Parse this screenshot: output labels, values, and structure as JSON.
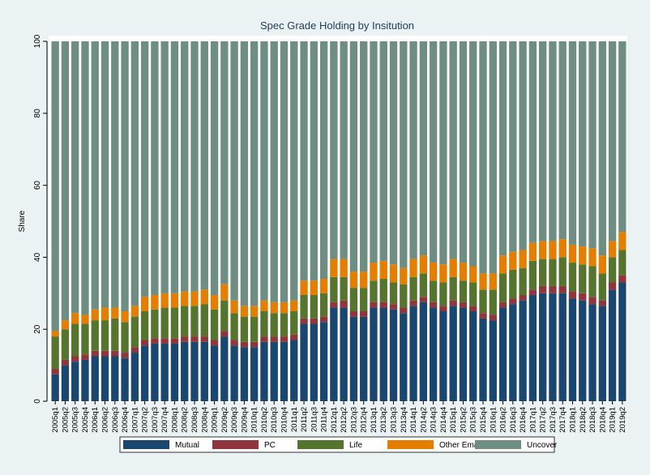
{
  "chart_data": {
    "type": "stacked_bar",
    "title": "Spec Grade  Holding by Insitution",
    "ylabel": "Share",
    "categories": [
      "2005q1",
      "2005q2",
      "2005q3",
      "2005q4",
      "2006q1",
      "2006q2",
      "2006q3",
      "2006q4",
      "2007q1",
      "2007q2",
      "2007q3",
      "2007q4",
      "2008q1",
      "2008q2",
      "2008q3",
      "2008q4",
      "2009q1",
      "2009q2",
      "2009q3",
      "2009q4",
      "2010q1",
      "2010q2",
      "2010q3",
      "2010q4",
      "2011q1",
      "2011q2",
      "2011q3",
      "2011q4",
      "2012q1",
      "2012q2",
      "2012q3",
      "2012q4",
      "2013q1",
      "2013q2",
      "2013q3",
      "2013q4",
      "2014q1",
      "2014q2",
      "2014q3",
      "2014q4",
      "2015q1",
      "2015q2",
      "2015q3",
      "2015q4",
      "2016q1",
      "2016q2",
      "2016q3",
      "2016q4",
      "2017q1",
      "2017q2",
      "2017q3",
      "2017q4",
      "2018q1",
      "2018q2",
      "2018q3",
      "2018q4",
      "2019q1",
      "2019q2"
    ],
    "series": [
      {
        "name": "Mutual",
        "color": "#1a476f",
        "values": [
          7.5,
          10,
          11,
          11.5,
          12.5,
          12.5,
          12.5,
          12,
          13.5,
          15.5,
          16,
          16,
          16,
          16.5,
          16.5,
          16.5,
          15.5,
          18,
          15.5,
          15,
          15,
          16.5,
          16.5,
          16.5,
          17,
          21.5,
          21.5,
          22,
          26,
          26,
          23.5,
          23.5,
          26,
          26,
          25.5,
          24.5,
          26.5,
          27.5,
          26,
          25,
          26.5,
          26,
          25,
          23,
          22.5,
          26,
          27,
          28,
          29.5,
          30,
          30,
          30,
          28.5,
          28,
          27,
          26.5,
          31,
          33
        ]
      },
      {
        "name": "PC",
        "color": "#90353b",
        "values": [
          1.5,
          1.5,
          1.5,
          1.5,
          1.5,
          1.5,
          1.5,
          1.5,
          1.5,
          1.5,
          1.5,
          1.5,
          1.5,
          1.5,
          1.5,
          1.5,
          1.5,
          1.5,
          1.5,
          1.5,
          1.5,
          1.5,
          1.5,
          1.5,
          1.5,
          1.5,
          1.5,
          1.5,
          1.5,
          2,
          1.5,
          1.5,
          1.5,
          1.5,
          1.5,
          1.5,
          1.5,
          1.5,
          1.5,
          1.5,
          1.5,
          1.5,
          1.5,
          1.5,
          1.5,
          1.5,
          1.5,
          1.5,
          1.5,
          2,
          2,
          2,
          2,
          2,
          2,
          1.5,
          2,
          2
        ]
      },
      {
        "name": "Life",
        "color": "#55752f",
        "values": [
          9,
          8.5,
          9,
          8.5,
          8.5,
          8.5,
          9,
          8.5,
          8.5,
          8,
          8,
          8.5,
          8.5,
          8.5,
          8.5,
          9,
          8.5,
          8.5,
          7.5,
          7,
          7,
          7,
          6.5,
          6.5,
          6.5,
          6.5,
          6.5,
          6.5,
          7,
          6.5,
          6.5,
          6.5,
          6,
          6.5,
          6,
          6.5,
          6.5,
          6.5,
          6,
          6.5,
          6.5,
          6,
          6.5,
          6.5,
          7,
          8,
          8,
          7.5,
          8,
          7.5,
          7.5,
          8,
          8,
          8,
          8.5,
          7.5,
          7,
          7
        ]
      },
      {
        "name": "Other Emaxx",
        "color": "#e37e00",
        "values": [
          1.5,
          2.5,
          3,
          2.5,
          3,
          3.5,
          3,
          3,
          3,
          4,
          4,
          4,
          4,
          4,
          4,
          4,
          4,
          4.5,
          3.5,
          3,
          3,
          3,
          3,
          3,
          3,
          4,
          4,
          4,
          5,
          5,
          4.5,
          4.5,
          5,
          5,
          5,
          4.5,
          5,
          5,
          5,
          5,
          5,
          5,
          4.5,
          4.5,
          4.5,
          5,
          5,
          5,
          5,
          5,
          5,
          5,
          5,
          5,
          5,
          5,
          4.5,
          5
        ]
      },
      {
        "name": "Uncover",
        "color": "#6e8e84",
        "values": [
          80.5,
          77.5,
          75.5,
          76,
          74.5,
          74,
          74,
          75,
          73.5,
          71,
          70.5,
          70,
          70,
          69.5,
          69.5,
          69,
          70.5,
          67.5,
          72,
          73.5,
          73.5,
          72,
          72.5,
          72.5,
          72,
          66.5,
          66.5,
          66,
          60.5,
          60.5,
          64,
          64,
          61.5,
          61,
          62,
          63,
          60.5,
          59.5,
          61.5,
          62,
          60.5,
          61.5,
          62.5,
          64.5,
          64.5,
          59.5,
          58.5,
          58,
          56,
          55.5,
          55.5,
          55,
          56.5,
          57,
          57.5,
          59.5,
          55.5,
          53
        ]
      }
    ],
    "ylim": [
      0,
      100
    ],
    "yticks": [
      0,
      20,
      40,
      60,
      80,
      100
    ],
    "grid": false,
    "legend": "bottom"
  }
}
